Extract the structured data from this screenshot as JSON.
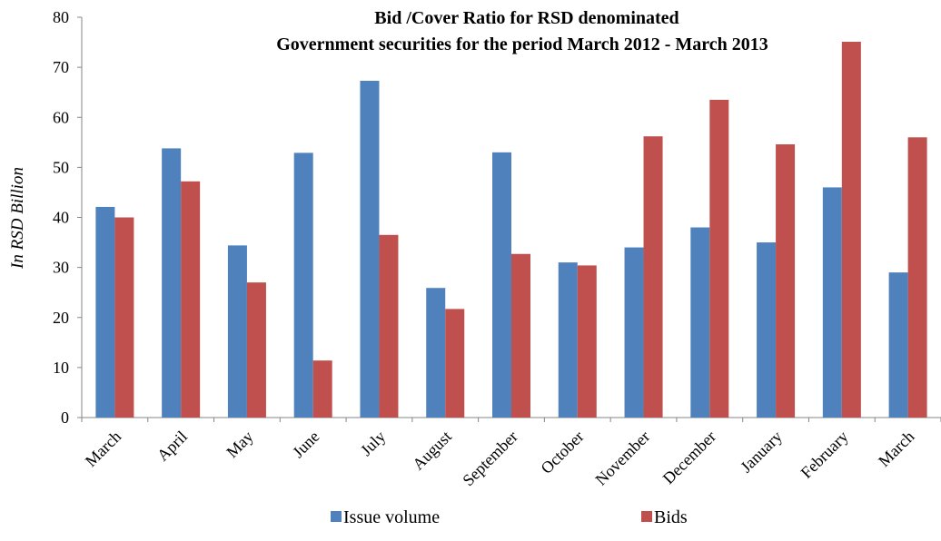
{
  "chart_data": {
    "type": "bar",
    "title": [
      "Bid /Cover Ratio for RSD denominated",
      "Government securities for the period March 2012 - March 2013"
    ],
    "ylabel": "In RSD Billion",
    "xlabel": "",
    "ylim": [
      0,
      80
    ],
    "yticks": [
      0,
      10,
      20,
      30,
      40,
      50,
      60,
      70,
      80
    ],
    "grid": false,
    "legend_position": "bottom",
    "categories": [
      "March",
      "April",
      "May",
      "June",
      "July",
      "August",
      "September",
      "October",
      "November",
      "December",
      "January",
      "February",
      "March"
    ],
    "series": [
      {
        "name": "Issue volume",
        "color": "#4f81bd",
        "values": [
          42.1,
          53.8,
          34.4,
          52.9,
          67.3,
          25.9,
          53.0,
          31.0,
          34.0,
          38.0,
          35.0,
          46.0,
          29.0
        ]
      },
      {
        "name": "Bids",
        "color": "#c0504d",
        "values": [
          40.0,
          47.2,
          27.0,
          11.4,
          36.5,
          21.7,
          32.7,
          30.4,
          56.2,
          63.5,
          54.6,
          75.1,
          56.0
        ]
      }
    ]
  }
}
